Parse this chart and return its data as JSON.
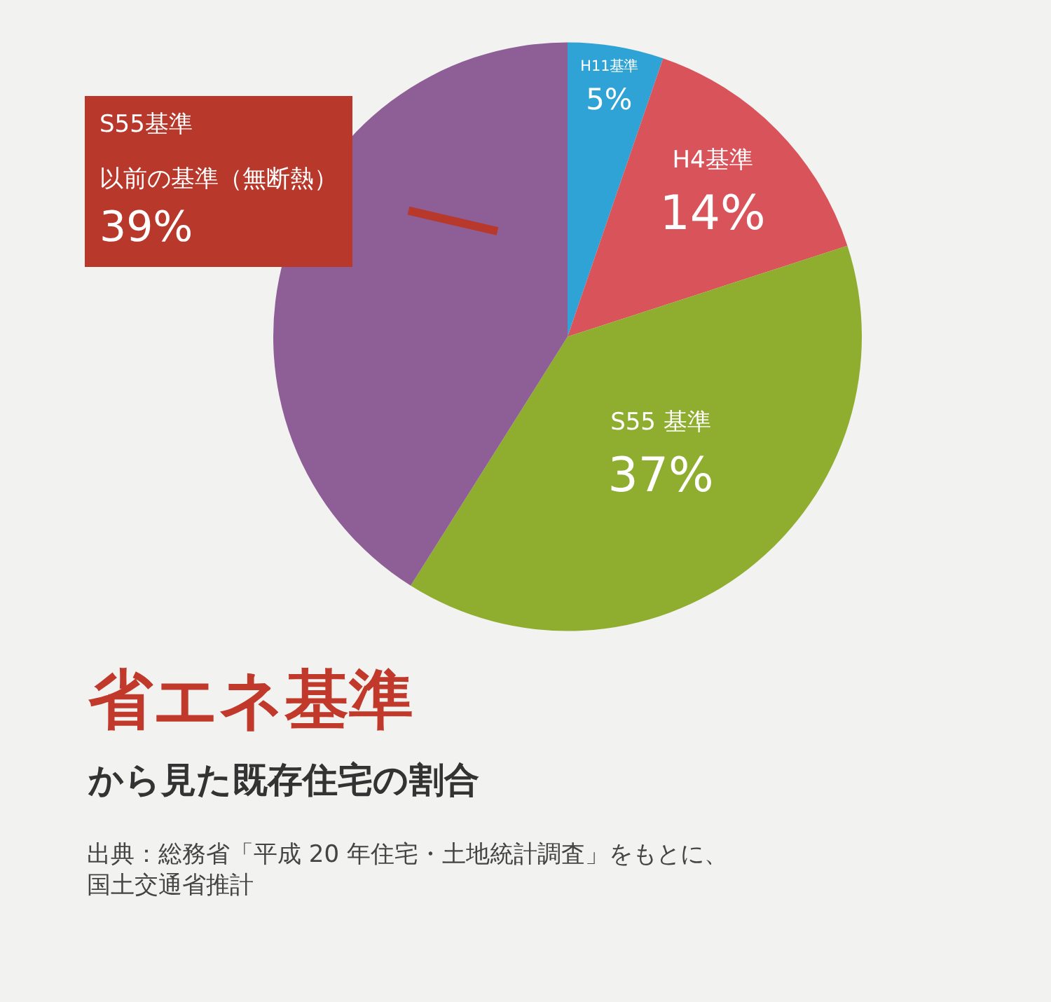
{
  "chart_data": {
    "type": "pie",
    "title": "省エネ基準",
    "subtitle": "から見た既存住宅の割合",
    "categories": [
      "H11基準",
      "H4基準",
      "S55 基準",
      "S55基準以前の基準（無断熱）"
    ],
    "values": [
      5,
      14,
      37,
      39
    ],
    "value_labels": [
      "5%",
      "14%",
      "37%",
      "39%"
    ],
    "colors": [
      "#2fa3d6",
      "#d9545a",
      "#8fad2e",
      "#8e5e96"
    ],
    "legend": false,
    "annotations": [
      "出典：総務省「平成 20 年住宅・土地統計調査」をもとに、国土交通省推計"
    ]
  }
}
